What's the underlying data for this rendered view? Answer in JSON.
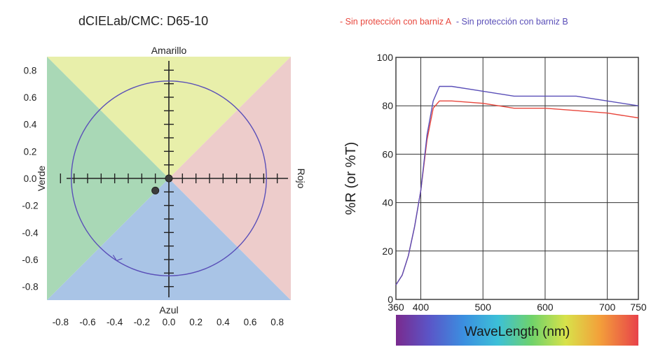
{
  "title": "dCIELab/CMC: D65-10",
  "legend": {
    "items": [
      {
        "label": "- Sin protección con barniz A",
        "color": "#e8463c"
      },
      {
        "label": "- Sin protección con barniz B",
        "color": "#5a4fb8"
      }
    ]
  },
  "chart_data": [
    {
      "type": "scatter",
      "title": "dCIELab/CMC: D65-10",
      "axis_labels": {
        "top": "Amarillo",
        "bottom": "Azul",
        "left": "Verde",
        "right": "Rojo"
      },
      "xlim": [
        -0.9,
        0.9
      ],
      "ylim": [
        -0.9,
        0.9
      ],
      "x_ticks": [
        "-0.8",
        "-0.6",
        "-0.4",
        "-0.2",
        "0.0",
        "0.2",
        "0.4",
        "0.6",
        "0.8"
      ],
      "y_ticks": [
        "0.8",
        "0.6",
        "0.4",
        "0.2",
        "0.0",
        "-0.2",
        "-0.4",
        "-0.6",
        "-0.8"
      ],
      "circle_radius": 0.72,
      "sector_colors": {
        "top": "#e8efaa",
        "bottom": "#a9c4e6",
        "left": "#a9d8b6",
        "right": "#edcccb"
      },
      "points": [
        {
          "x": 0.0,
          "y": 0.0
        },
        {
          "x": -0.1,
          "y": -0.09
        }
      ],
      "grid": true
    },
    {
      "type": "line",
      "xlabel": "WaveLength (nm)",
      "ylabel": "%R (or %T)",
      "xlim": [
        360,
        750
      ],
      "ylim": [
        0,
        100
      ],
      "x_ticks": [
        "360",
        "400",
        "500",
        "600",
        "700",
        "750"
      ],
      "y_ticks": [
        "0",
        "20",
        "40",
        "60",
        "80",
        "100"
      ],
      "grid": true,
      "series": [
        {
          "name": "Sin protección con barniz A",
          "color": "#e8463c",
          "x": [
            360,
            370,
            380,
            390,
            400,
            410,
            420,
            430,
            450,
            500,
            550,
            600,
            650,
            700,
            750
          ],
          "y": [
            6,
            10,
            18,
            30,
            45,
            66,
            79,
            82,
            82,
            81,
            79,
            79,
            78,
            77,
            75
          ]
        },
        {
          "name": "Sin protección con barniz B",
          "color": "#5a4fb8",
          "x": [
            360,
            370,
            380,
            390,
            400,
            410,
            420,
            430,
            450,
            500,
            550,
            600,
            650,
            700,
            750
          ],
          "y": [
            6,
            10,
            18,
            30,
            45,
            68,
            82,
            88,
            88,
            86,
            84,
            84,
            84,
            82,
            80
          ]
        }
      ]
    }
  ]
}
